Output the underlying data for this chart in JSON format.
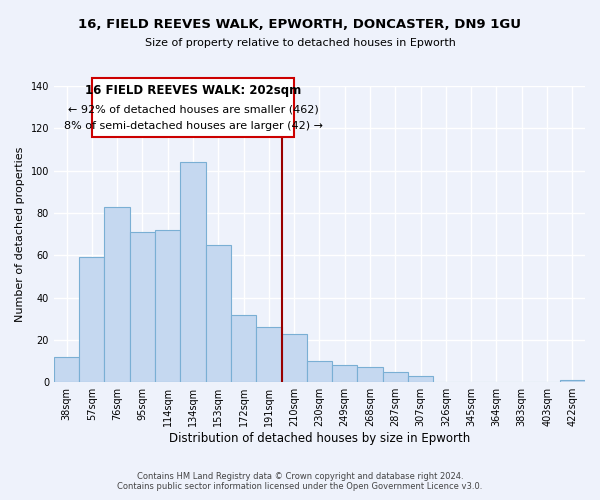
{
  "title": "16, FIELD REEVES WALK, EPWORTH, DONCASTER, DN9 1GU",
  "subtitle": "Size of property relative to detached houses in Epworth",
  "xlabel": "Distribution of detached houses by size in Epworth",
  "ylabel": "Number of detached properties",
  "bar_color": "#c5d8f0",
  "bar_edge_color": "#7aafd4",
  "bins": [
    "38sqm",
    "57sqm",
    "76sqm",
    "95sqm",
    "114sqm",
    "134sqm",
    "153sqm",
    "172sqm",
    "191sqm",
    "210sqm",
    "230sqm",
    "249sqm",
    "268sqm",
    "287sqm",
    "307sqm",
    "326sqm",
    "345sqm",
    "364sqm",
    "383sqm",
    "403sqm",
    "422sqm"
  ],
  "values": [
    12,
    59,
    83,
    71,
    72,
    104,
    65,
    32,
    26,
    23,
    10,
    8,
    7,
    5,
    3,
    0,
    0,
    0,
    0,
    0,
    1
  ],
  "ylim": [
    0,
    140
  ],
  "yticks": [
    0,
    20,
    40,
    60,
    80,
    100,
    120,
    140
  ],
  "vline_color": "#990000",
  "annotation_title": "16 FIELD REEVES WALK: 202sqm",
  "annotation_line1": "← 92% of detached houses are smaller (462)",
  "annotation_line2": "8% of semi-detached houses are larger (42) →",
  "annotation_box_color": "#ffffff",
  "annotation_box_edge": "#cc0000",
  "footer1": "Contains HM Land Registry data © Crown copyright and database right 2024.",
  "footer2": "Contains public sector information licensed under the Open Government Licence v3.0.",
  "background_color": "#eef2fb",
  "grid_color": "#ffffff"
}
